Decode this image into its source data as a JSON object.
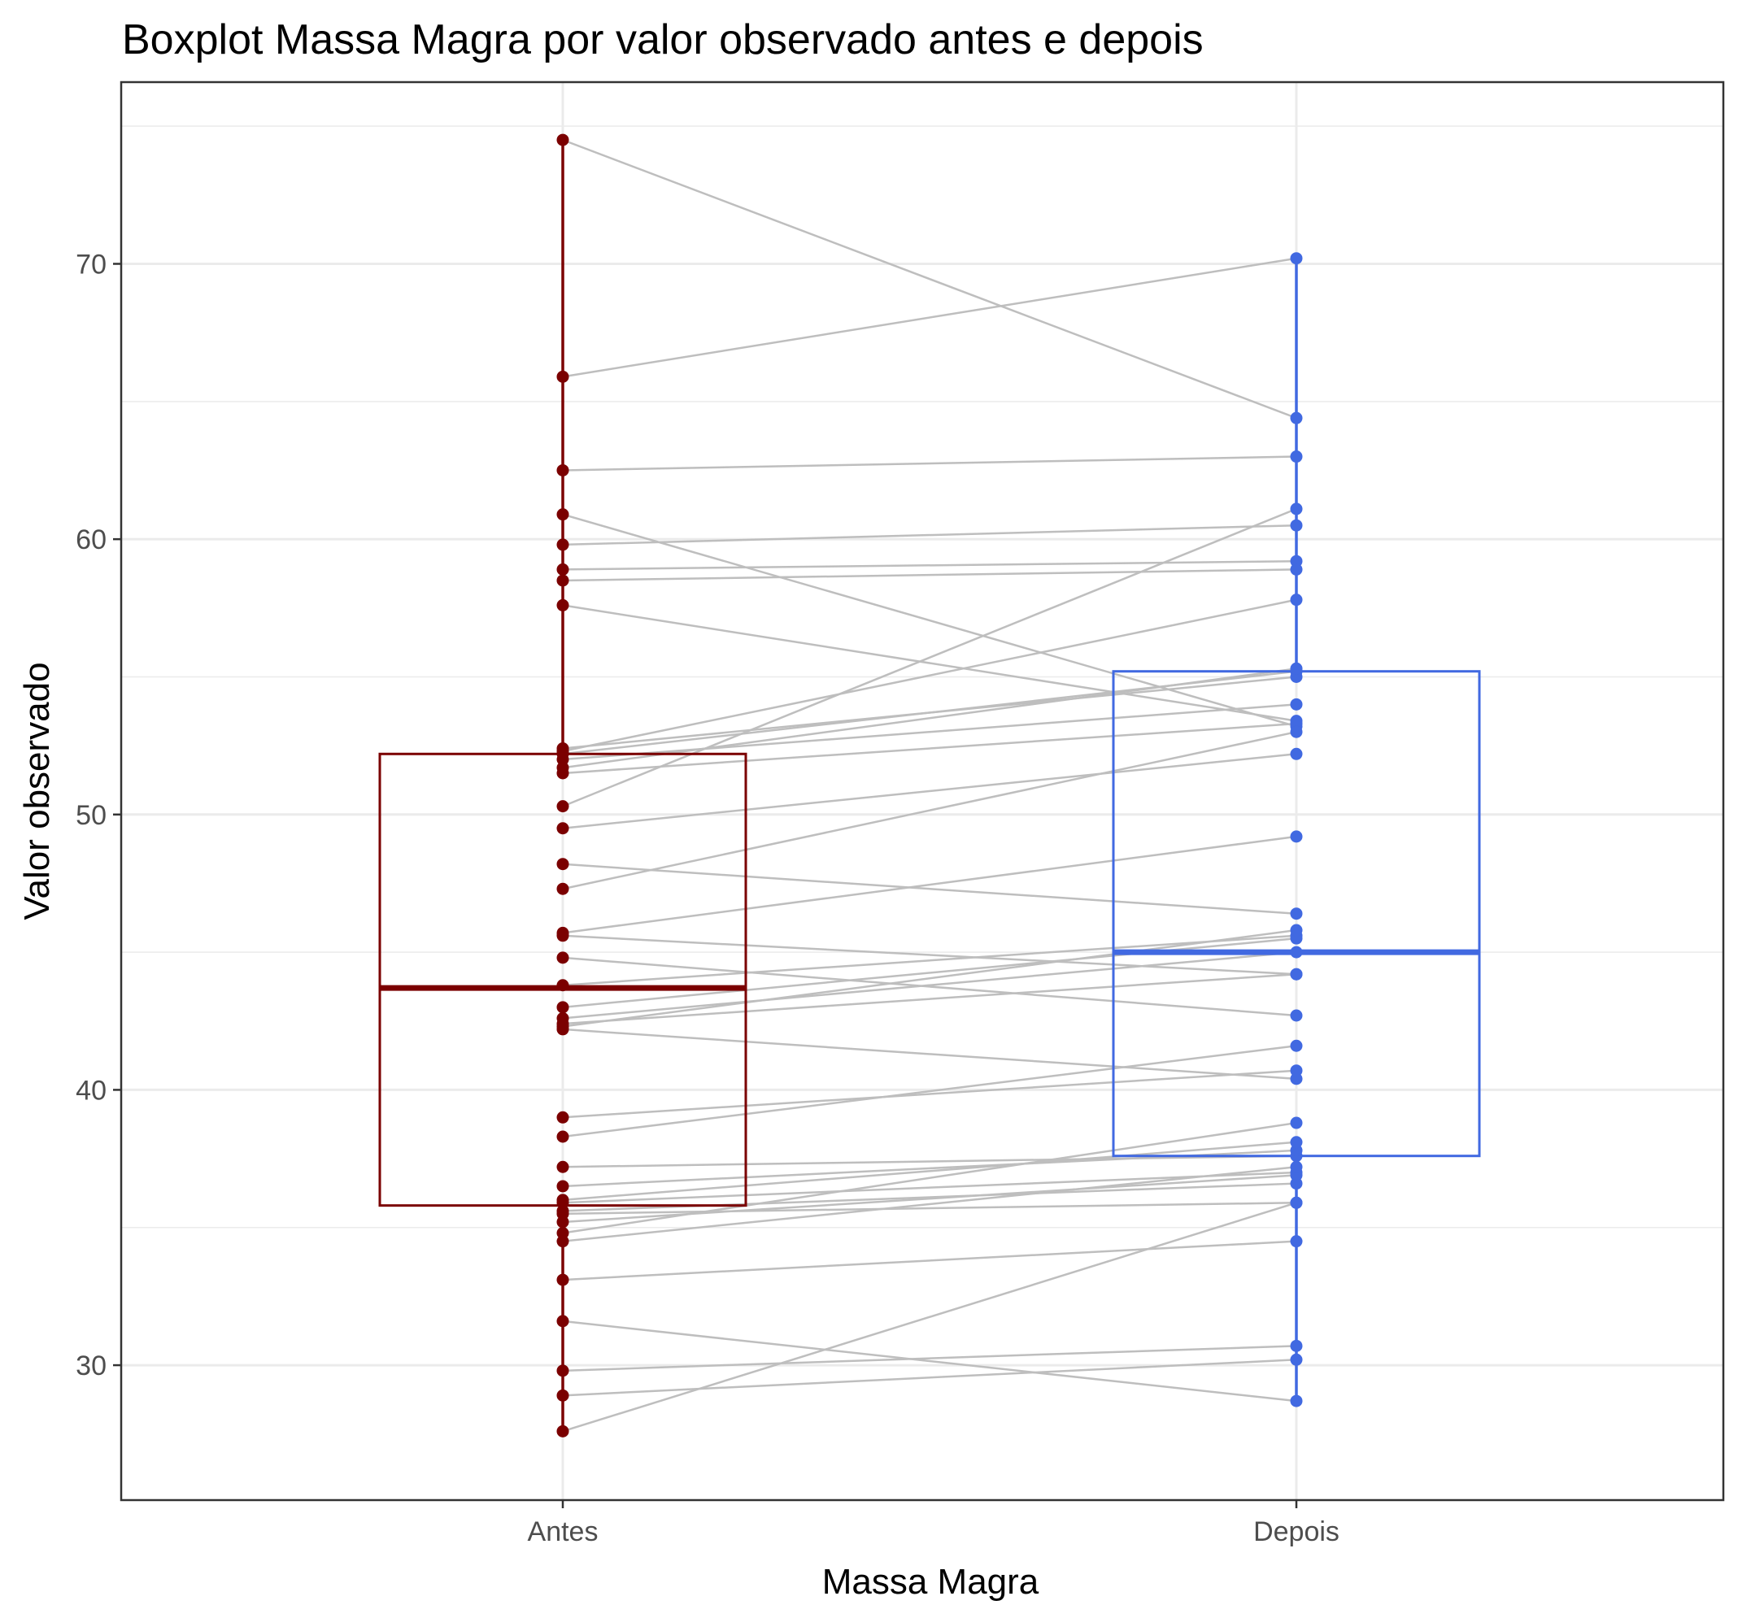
{
  "chart_data": {
    "type": "boxplot",
    "title": "Boxplot Massa Magra por valor observado antes e depois",
    "xlabel": "Massa Magra",
    "ylabel": "Valor observado",
    "ylim": [
      25.1,
      76.6
    ],
    "yticks": [
      30,
      40,
      50,
      60,
      70
    ],
    "categories": [
      "Antes",
      "Depois"
    ],
    "grid": true,
    "colors": {
      "Antes": "#7b0000",
      "Depois": "#4169e1",
      "lines": "#bebebe",
      "grid": "#ebebeb",
      "panel_border": "#333333"
    },
    "boxes": [
      {
        "name": "Antes",
        "min": 27.6,
        "q1": 35.8,
        "median": 43.7,
        "q3": 52.2,
        "max": 74.5
      },
      {
        "name": "Depois",
        "min": 28.7,
        "q1": 37.6,
        "median": 45.0,
        "q3": 55.2,
        "max": 70.2
      }
    ],
    "pairs": [
      [
        74.5,
        64.4
      ],
      [
        65.9,
        70.2
      ],
      [
        62.5,
        63.0
      ],
      [
        60.9,
        53.2
      ],
      [
        59.8,
        60.5
      ],
      [
        58.9,
        59.2
      ],
      [
        58.5,
        58.9
      ],
      [
        57.6,
        53.4
      ],
      [
        52.4,
        55.0
      ],
      [
        52.3,
        57.8
      ],
      [
        52.2,
        55.2
      ],
      [
        52.0,
        54.0
      ],
      [
        51.7,
        55.3
      ],
      [
        51.5,
        53.3
      ],
      [
        50.3,
        61.1
      ],
      [
        49.5,
        52.2
      ],
      [
        48.2,
        46.4
      ],
      [
        47.3,
        53.0
      ],
      [
        45.7,
        49.2
      ],
      [
        45.6,
        44.2
      ],
      [
        44.8,
        42.7
      ],
      [
        43.8,
        45.6
      ],
      [
        43.0,
        45.5
      ],
      [
        42.6,
        45.0
      ],
      [
        42.4,
        44.2
      ],
      [
        42.3,
        45.8
      ],
      [
        42.2,
        40.4
      ],
      [
        39.0,
        40.7
      ],
      [
        38.3,
        41.6
      ],
      [
        37.2,
        37.6
      ],
      [
        36.5,
        37.8
      ],
      [
        36.0,
        38.1
      ],
      [
        35.9,
        37.0
      ],
      [
        35.6,
        36.6
      ],
      [
        35.5,
        35.9
      ],
      [
        35.2,
        36.9
      ],
      [
        34.8,
        38.8
      ],
      [
        34.5,
        37.2
      ],
      [
        33.1,
        34.5
      ],
      [
        31.6,
        28.7
      ],
      [
        29.8,
        30.7
      ],
      [
        28.9,
        30.2
      ],
      [
        27.6,
        35.9
      ]
    ]
  },
  "x_ticks": [
    "Antes",
    "Depois"
  ],
  "y_ticks": [
    "30",
    "40",
    "50",
    "60",
    "70"
  ]
}
